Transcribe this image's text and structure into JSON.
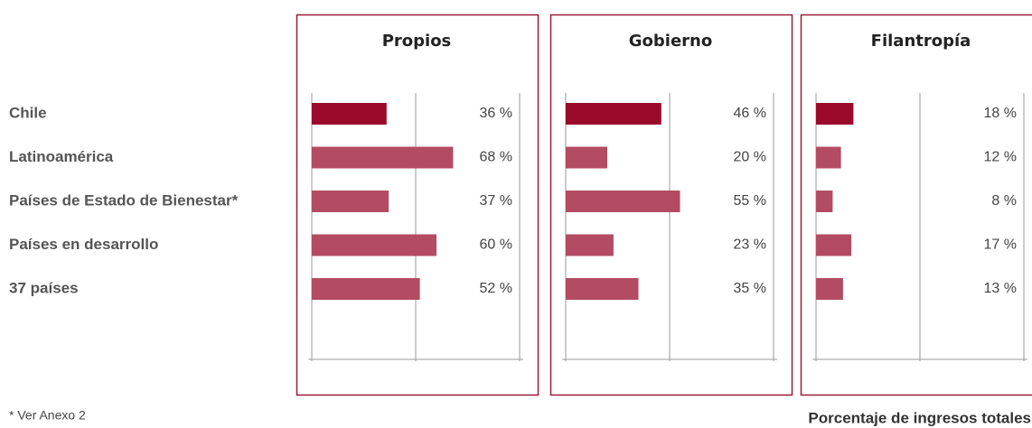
{
  "chart_data": {
    "type": "bar",
    "categories": [
      "Chile",
      "Latinoamérica",
      "Países de Estado de Bienestar*",
      "Países en desarrollo",
      "37 países"
    ],
    "series": [
      {
        "name": "Propios",
        "values": [
          36,
          68,
          37,
          60,
          52
        ],
        "value_labels": [
          "36 %",
          "68 %",
          "37 %",
          "60 %",
          "52 %"
        ],
        "colors": [
          "#9b0a2a",
          "#b34c63",
          "#b34c63",
          "#b34c63",
          "#b34c63"
        ]
      },
      {
        "name": "Gobierno",
        "values": [
          46,
          20,
          55,
          23,
          35
        ],
        "value_labels": [
          "46 %",
          "20 %",
          "55 %",
          "23 %",
          "35 %"
        ],
        "colors": [
          "#9b0a2a",
          "#b34c63",
          "#b34c63",
          "#b34c63",
          "#b34c63"
        ]
      },
      {
        "name": "Filantropía",
        "values": [
          18,
          12,
          8,
          17,
          13
        ],
        "value_labels": [
          "18 %",
          "12 %",
          "8 %",
          "17 %",
          "13 %"
        ],
        "colors": [
          "#9b0a2a",
          "#b34c63",
          "#b34c63",
          "#b34c63",
          "#b34c63"
        ]
      }
    ],
    "xlim": [
      0,
      100
    ],
    "xticks": [
      0,
      50,
      100
    ],
    "grid": true,
    "xlabel": "Porcentaje de ingresos totales",
    "note": "* Ver Anexo 2"
  }
}
